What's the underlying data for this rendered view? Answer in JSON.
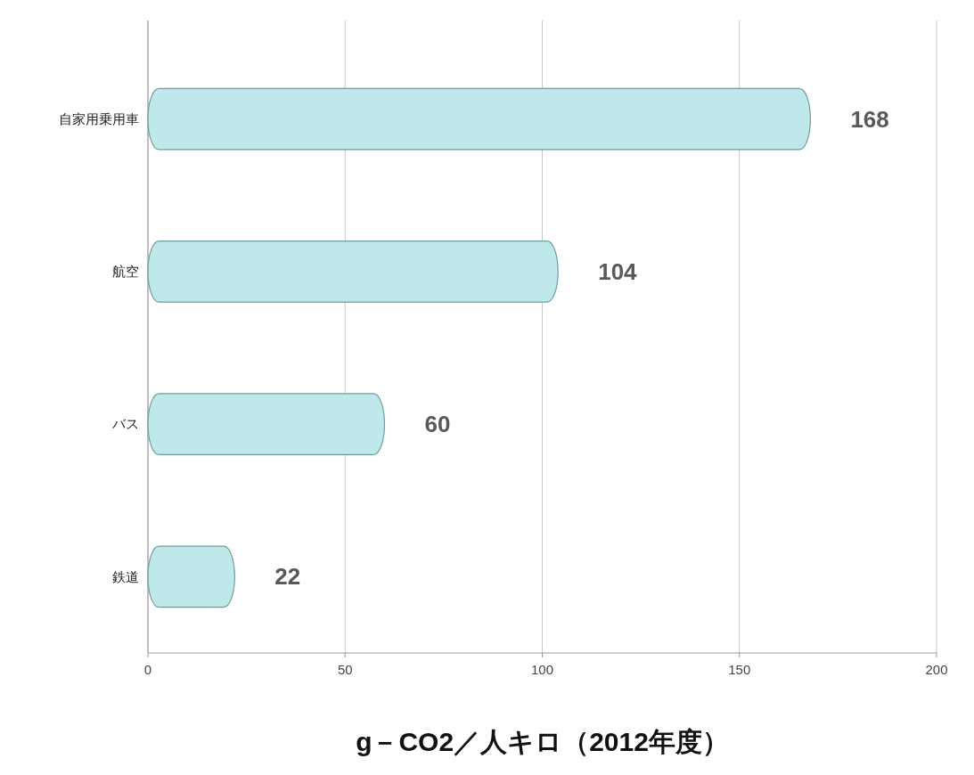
{
  "chart_data": {
    "type": "bar",
    "orientation": "horizontal",
    "xlabel": "g－CO2／人キロ（2012年度）",
    "categories": [
      "自家用乗用車",
      "航空",
      "バス",
      "鉄道"
    ],
    "values": [
      168,
      104,
      60,
      22
    ],
    "color": "#bfe8ea",
    "xlim": [
      0,
      200
    ],
    "xticks": [
      0,
      50,
      100,
      150,
      200
    ],
    "grid": "x",
    "data_labels": true
  }
}
